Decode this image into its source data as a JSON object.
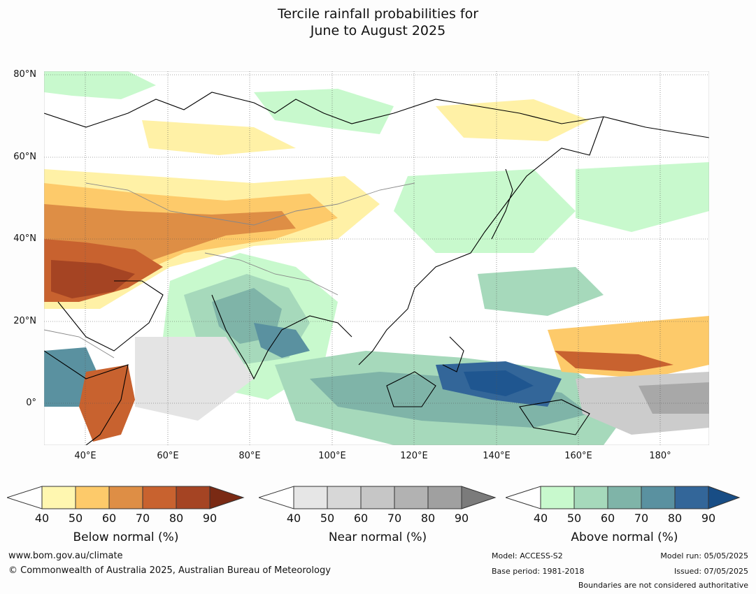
{
  "title_line1": "Tercile rainfall probabilities for",
  "title_line2": "June to August 2025",
  "lat_labels": [
    "80°N",
    "60°N",
    "40°N",
    "20°N",
    "0°"
  ],
  "lon_labels": [
    "40°E",
    "60°E",
    "80°E",
    "100°E",
    "120°E",
    "140°E",
    "160°E",
    "180°"
  ],
  "colorbars": [
    {
      "title": "Below normal (%)",
      "ticks": [
        "40",
        "50",
        "60",
        "70",
        "80",
        "90"
      ],
      "colors": [
        "#fff7b0",
        "#fdca6a",
        "#de8e45",
        "#c8622f",
        "#a54423",
        "#7a2a14"
      ]
    },
    {
      "title": "Near normal (%)",
      "ticks": [
        "40",
        "50",
        "60",
        "70",
        "80",
        "90"
      ],
      "colors": [
        "#e6e6e6",
        "#d7d7d7",
        "#c6c6c6",
        "#b2b2b2",
        "#a0a0a0",
        "#7b7b7b"
      ]
    },
    {
      "title": "Above normal (%)",
      "ticks": [
        "40",
        "50",
        "60",
        "70",
        "80",
        "90"
      ],
      "colors": [
        "#c8f9cd",
        "#a6d9bb",
        "#7fb4a8",
        "#5a91a0",
        "#336699",
        "#184d85"
      ]
    }
  ],
  "footer": {
    "url": "www.bom.gov.au/climate",
    "copyright": "© Commonwealth of Australia 2025, Australian Bureau of Meteorology",
    "model": "Model: ACCESS-S2",
    "base_period": "Base period: 1981-2018",
    "model_run": "Model run: 05/05/2025",
    "issued": "Issued: 07/05/2025",
    "disclaimer": "Boundaries are not considered authoritative"
  },
  "map_colors": {
    "below": [
      "#fff1a6",
      "#fdca6a",
      "#de8e45",
      "#c8622f",
      "#a54423"
    ],
    "near": [
      "#e4e4e4",
      "#cccccc",
      "#a8a8a8"
    ],
    "above": [
      "#c8f9cd",
      "#a6d9bb",
      "#7fb4a8",
      "#5a91a0",
      "#336699",
      "#1f5690"
    ]
  }
}
